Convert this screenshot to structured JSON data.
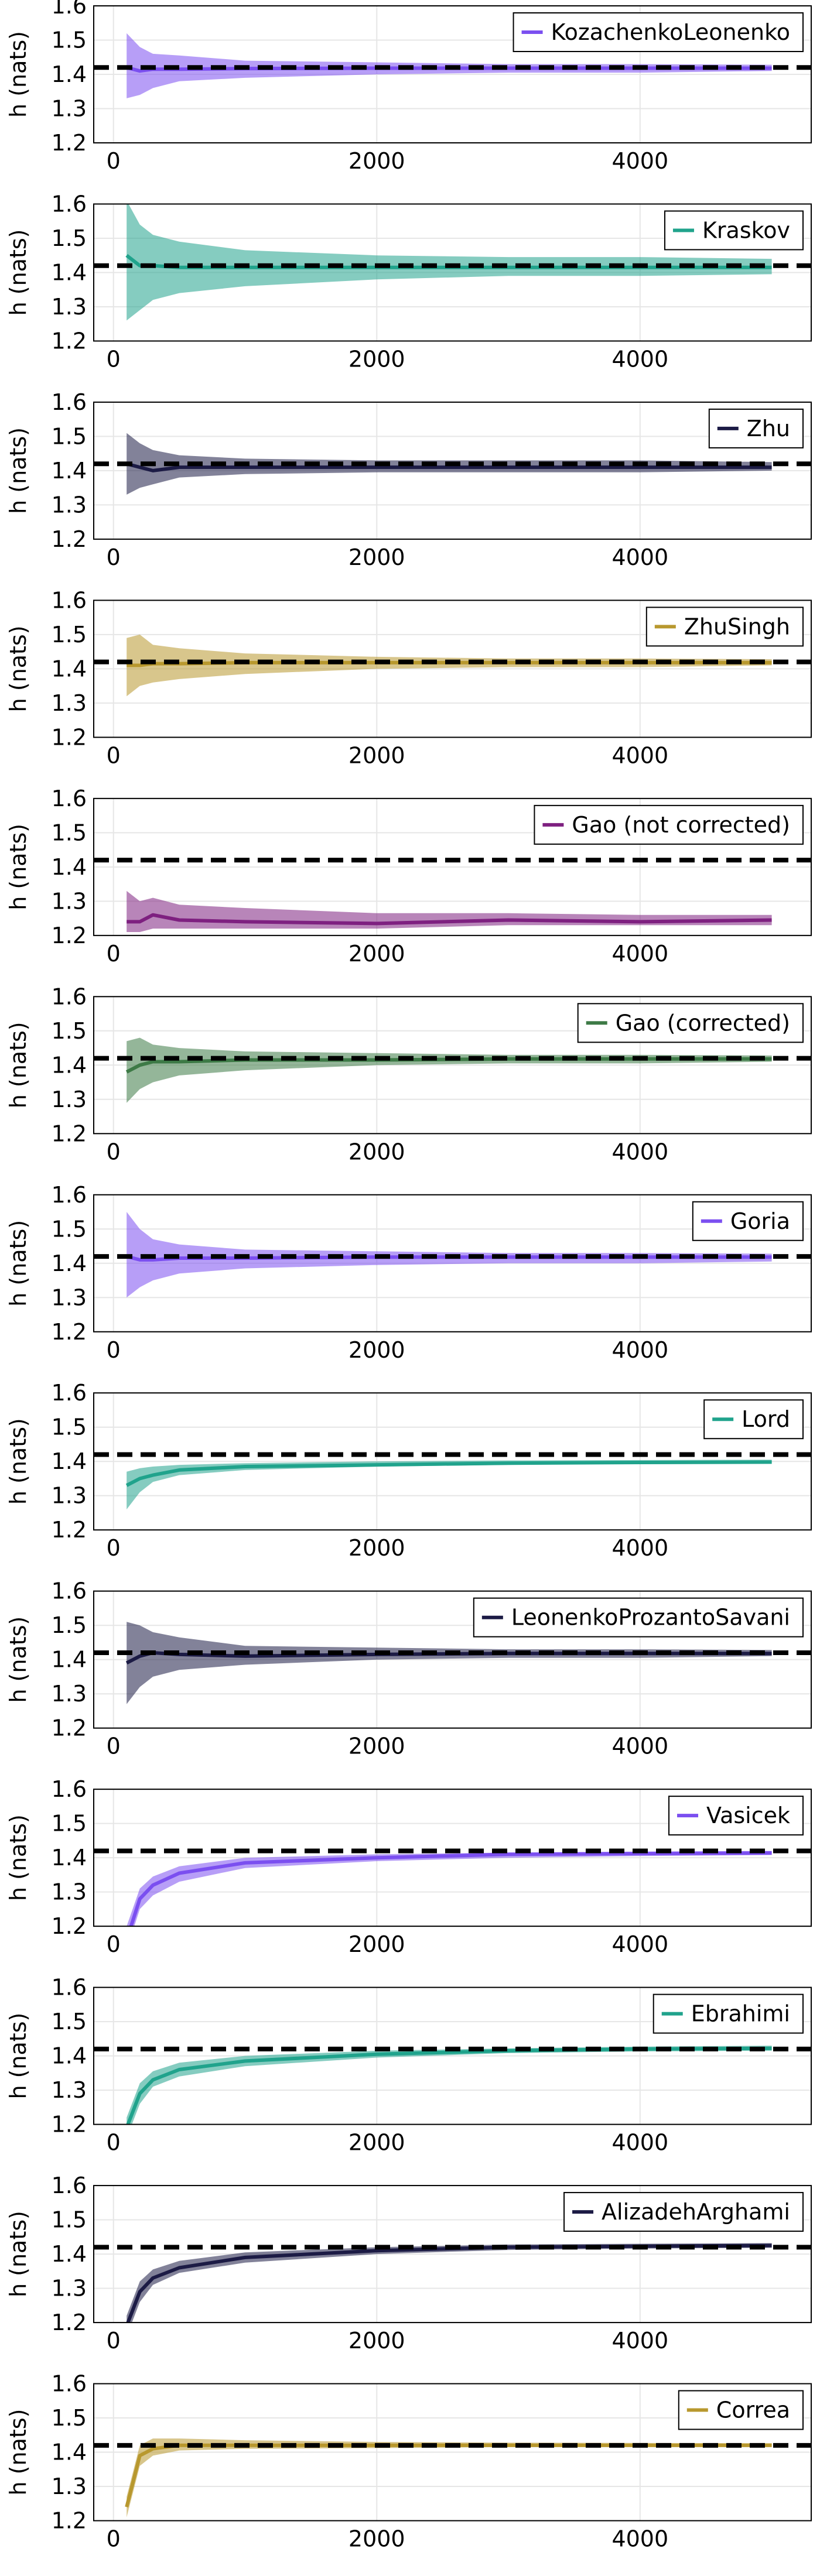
{
  "colors": {
    "KozachenkoLeonenko": "#7b4ff0",
    "Kraskov": "#20a38c",
    "Zhu": "#1c1b45",
    "ZhuSingh": "#b8982e",
    "Gao (not corrected)": "#7e2080",
    "Gao (corrected)": "#3d7a46",
    "Goria": "#7b4ff0",
    "Lord": "#20a38c",
    "LeonenkoProzantoSavani": "#1c1b45",
    "Vasicek": "#7b4ff0",
    "Ebrahimi": "#20a38c",
    "AlizadehArghami": "#1c1b45",
    "Correa": "#b8982e",
    "reference_line": "#000000",
    "grid": "#e6e6e6"
  },
  "chart_data": [
    {
      "type": "line",
      "legend": "KozachenkoLeonenko",
      "ylabel": "h (nats)",
      "xticks": [
        0,
        2000,
        4000
      ],
      "yticks": [
        1.2,
        1.3,
        1.4,
        1.5,
        1.6
      ],
      "xlim": [
        -150,
        5300
      ],
      "ylim": [
        1.2,
        1.6
      ],
      "reference": 1.42,
      "grid": true,
      "legend_position": "top-right",
      "series": [
        {
          "name": "KozachenkoLeonenko",
          "x": [
            100,
            200,
            300,
            500,
            1000,
            2000,
            3000,
            4000,
            5000
          ],
          "mean": [
            1.42,
            1.41,
            1.415,
            1.415,
            1.417,
            1.418,
            1.418,
            1.418,
            1.418
          ],
          "lower": [
            1.33,
            1.34,
            1.36,
            1.38,
            1.39,
            1.4,
            1.405,
            1.405,
            1.41
          ],
          "upper": [
            1.52,
            1.48,
            1.46,
            1.455,
            1.44,
            1.435,
            1.43,
            1.43,
            1.428
          ]
        }
      ]
    },
    {
      "type": "line",
      "legend": "Kraskov",
      "ylabel": "h (nats)",
      "xticks": [
        0,
        2000,
        4000
      ],
      "yticks": [
        1.2,
        1.3,
        1.4,
        1.5,
        1.6
      ],
      "xlim": [
        -150,
        5300
      ],
      "ylim": [
        1.2,
        1.6
      ],
      "reference": 1.42,
      "grid": true,
      "legend_position": "top-right",
      "series": [
        {
          "name": "Kraskov",
          "x": [
            100,
            200,
            300,
            500,
            1000,
            2000,
            3000,
            4000,
            5000
          ],
          "mean": [
            1.45,
            1.42,
            1.42,
            1.415,
            1.415,
            1.415,
            1.415,
            1.415,
            1.415
          ],
          "lower": [
            1.26,
            1.29,
            1.32,
            1.34,
            1.36,
            1.38,
            1.39,
            1.39,
            1.395
          ],
          "upper": [
            1.61,
            1.54,
            1.51,
            1.49,
            1.465,
            1.45,
            1.445,
            1.445,
            1.44
          ]
        }
      ]
    },
    {
      "type": "line",
      "legend": "Zhu",
      "ylabel": "h (nats)",
      "xticks": [
        0,
        2000,
        4000
      ],
      "yticks": [
        1.2,
        1.3,
        1.4,
        1.5,
        1.6
      ],
      "xlim": [
        -150,
        5300
      ],
      "ylim": [
        1.2,
        1.6
      ],
      "reference": 1.42,
      "grid": true,
      "legend_position": "top-right",
      "series": [
        {
          "name": "Zhu",
          "x": [
            100,
            200,
            300,
            500,
            1000,
            2000,
            3000,
            4000,
            5000
          ],
          "mean": [
            1.42,
            1.41,
            1.4,
            1.41,
            1.41,
            1.41,
            1.41,
            1.41,
            1.41
          ],
          "lower": [
            1.33,
            1.35,
            1.36,
            1.38,
            1.39,
            1.395,
            1.395,
            1.395,
            1.4
          ],
          "upper": [
            1.51,
            1.48,
            1.46,
            1.445,
            1.435,
            1.43,
            1.43,
            1.43,
            1.425
          ]
        }
      ]
    },
    {
      "type": "line",
      "legend": "ZhuSingh",
      "ylabel": "h (nats)",
      "xticks": [
        0,
        2000,
        4000
      ],
      "yticks": [
        1.2,
        1.3,
        1.4,
        1.5,
        1.6
      ],
      "xlim": [
        -150,
        5300
      ],
      "ylim": [
        1.2,
        1.6
      ],
      "reference": 1.42,
      "grid": true,
      "legend_position": "top-right",
      "series": [
        {
          "name": "ZhuSingh",
          "x": [
            100,
            200,
            300,
            500,
            1000,
            2000,
            3000,
            4000,
            5000
          ],
          "mean": [
            1.41,
            1.41,
            1.415,
            1.415,
            1.418,
            1.418,
            1.418,
            1.418,
            1.418
          ],
          "lower": [
            1.32,
            1.35,
            1.36,
            1.37,
            1.385,
            1.4,
            1.405,
            1.405,
            1.41
          ],
          "upper": [
            1.49,
            1.5,
            1.47,
            1.46,
            1.445,
            1.435,
            1.43,
            1.43,
            1.428
          ]
        }
      ]
    },
    {
      "type": "line",
      "legend": "Gao (not corrected)",
      "ylabel": "h (nats)",
      "xticks": [
        0,
        2000,
        4000
      ],
      "yticks": [
        1.2,
        1.3,
        1.4,
        1.5,
        1.6
      ],
      "xlim": [
        -150,
        5300
      ],
      "ylim": [
        1.2,
        1.6
      ],
      "reference": 1.42,
      "grid": true,
      "legend_position": "top-right",
      "series": [
        {
          "name": "Gao (not corrected)",
          "x": [
            100,
            200,
            300,
            500,
            1000,
            2000,
            3000,
            4000,
            5000
          ],
          "mean": [
            1.24,
            1.24,
            1.26,
            1.245,
            1.24,
            1.235,
            1.245,
            1.24,
            1.245
          ],
          "lower": [
            1.21,
            1.21,
            1.22,
            1.22,
            1.22,
            1.22,
            1.23,
            1.23,
            1.23
          ],
          "upper": [
            1.33,
            1.3,
            1.31,
            1.29,
            1.28,
            1.265,
            1.265,
            1.26,
            1.26
          ]
        }
      ]
    },
    {
      "type": "line",
      "legend": "Gao (corrected)",
      "ylabel": "h (nats)",
      "xticks": [
        0,
        2000,
        4000
      ],
      "yticks": [
        1.2,
        1.3,
        1.4,
        1.5,
        1.6
      ],
      "xlim": [
        -150,
        5300
      ],
      "ylim": [
        1.2,
        1.6
      ],
      "reference": 1.42,
      "grid": true,
      "legend_position": "top-right",
      "series": [
        {
          "name": "Gao (corrected)",
          "x": [
            100,
            200,
            300,
            500,
            1000,
            2000,
            3000,
            4000,
            5000
          ],
          "mean": [
            1.38,
            1.4,
            1.41,
            1.41,
            1.415,
            1.415,
            1.418,
            1.418,
            1.418
          ],
          "lower": [
            1.29,
            1.33,
            1.35,
            1.37,
            1.385,
            1.4,
            1.405,
            1.405,
            1.41
          ],
          "upper": [
            1.47,
            1.48,
            1.46,
            1.45,
            1.44,
            1.435,
            1.43,
            1.43,
            1.428
          ]
        }
      ]
    },
    {
      "type": "line",
      "legend": "Goria",
      "ylabel": "h (nats)",
      "xticks": [
        0,
        2000,
        4000
      ],
      "yticks": [
        1.2,
        1.3,
        1.4,
        1.5,
        1.6
      ],
      "xlim": [
        -150,
        5300
      ],
      "ylim": [
        1.2,
        1.6
      ],
      "reference": 1.42,
      "grid": true,
      "legend_position": "top-right",
      "series": [
        {
          "name": "Goria",
          "x": [
            100,
            200,
            300,
            500,
            1000,
            2000,
            3000,
            4000,
            5000
          ],
          "mean": [
            1.42,
            1.41,
            1.41,
            1.415,
            1.415,
            1.418,
            1.418,
            1.418,
            1.418
          ],
          "lower": [
            1.3,
            1.33,
            1.35,
            1.37,
            1.385,
            1.395,
            1.4,
            1.4,
            1.405
          ],
          "upper": [
            1.55,
            1.5,
            1.47,
            1.455,
            1.44,
            1.435,
            1.43,
            1.43,
            1.428
          ]
        }
      ]
    },
    {
      "type": "line",
      "legend": "Lord",
      "ylabel": "h (nats)",
      "xticks": [
        0,
        2000,
        4000
      ],
      "yticks": [
        1.2,
        1.3,
        1.4,
        1.5,
        1.6
      ],
      "xlim": [
        -150,
        5300
      ],
      "ylim": [
        1.2,
        1.6
      ],
      "reference": 1.42,
      "grid": true,
      "legend_position": "top-right",
      "series": [
        {
          "name": "Lord",
          "x": [
            100,
            200,
            300,
            500,
            1000,
            2000,
            3000,
            4000,
            5000
          ],
          "mean": [
            1.33,
            1.35,
            1.36,
            1.375,
            1.385,
            1.39,
            1.395,
            1.397,
            1.398
          ],
          "lower": [
            1.26,
            1.31,
            1.34,
            1.36,
            1.375,
            1.385,
            1.39,
            1.393,
            1.395
          ],
          "upper": [
            1.37,
            1.38,
            1.385,
            1.39,
            1.395,
            1.4,
            1.403,
            1.404,
            1.405
          ]
        }
      ]
    },
    {
      "type": "line",
      "legend": "LeonenkoProzantoSavani",
      "ylabel": "h (nats)",
      "xticks": [
        0,
        2000,
        4000
      ],
      "yticks": [
        1.2,
        1.3,
        1.4,
        1.5,
        1.6
      ],
      "xlim": [
        -150,
        5300
      ],
      "ylim": [
        1.2,
        1.6
      ],
      "reference": 1.42,
      "grid": true,
      "legend_position": "top-right",
      "series": [
        {
          "name": "LeonenkoProzantoSavani",
          "x": [
            100,
            200,
            300,
            500,
            1000,
            2000,
            3000,
            4000,
            5000
          ],
          "mean": [
            1.39,
            1.41,
            1.42,
            1.415,
            1.41,
            1.415,
            1.418,
            1.418,
            1.418
          ],
          "lower": [
            1.27,
            1.32,
            1.35,
            1.37,
            1.385,
            1.4,
            1.405,
            1.405,
            1.41
          ],
          "upper": [
            1.51,
            1.5,
            1.48,
            1.465,
            1.44,
            1.435,
            1.43,
            1.43,
            1.428
          ]
        }
      ]
    },
    {
      "type": "line",
      "legend": "Vasicek",
      "ylabel": "h (nats)",
      "xticks": [
        0,
        2000,
        4000
      ],
      "yticks": [
        1.2,
        1.3,
        1.4,
        1.5,
        1.6
      ],
      "xlim": [
        -150,
        5300
      ],
      "ylim": [
        1.2,
        1.6
      ],
      "reference": 1.42,
      "grid": true,
      "legend_position": "top-right",
      "series": [
        {
          "name": "Vasicek",
          "x": [
            100,
            200,
            300,
            500,
            1000,
            2000,
            3000,
            4000,
            5000
          ],
          "mean": [
            1.16,
            1.28,
            1.32,
            1.355,
            1.385,
            1.4,
            1.41,
            1.412,
            1.414
          ],
          "lower": [
            1.13,
            1.25,
            1.29,
            1.33,
            1.37,
            1.39,
            1.4,
            1.405,
            1.408
          ],
          "upper": [
            1.2,
            1.31,
            1.345,
            1.375,
            1.4,
            1.41,
            1.415,
            1.418,
            1.42
          ]
        }
      ]
    },
    {
      "type": "line",
      "legend": "Ebrahimi",
      "ylabel": "h (nats)",
      "xticks": [
        0,
        2000,
        4000
      ],
      "yticks": [
        1.2,
        1.3,
        1.4,
        1.5,
        1.6
      ],
      "xlim": [
        -150,
        5300
      ],
      "ylim": [
        1.2,
        1.6
      ],
      "reference": 1.42,
      "grid": true,
      "legend_position": "top-right",
      "series": [
        {
          "name": "Ebrahimi",
          "x": [
            100,
            200,
            300,
            500,
            1000,
            2000,
            3000,
            4000,
            5000
          ],
          "mean": [
            1.19,
            1.29,
            1.33,
            1.36,
            1.385,
            1.405,
            1.415,
            1.42,
            1.422
          ],
          "lower": [
            1.16,
            1.26,
            1.31,
            1.34,
            1.37,
            1.395,
            1.408,
            1.413,
            1.415
          ],
          "upper": [
            1.22,
            1.32,
            1.355,
            1.38,
            1.4,
            1.415,
            1.422,
            1.427,
            1.43
          ]
        }
      ]
    },
    {
      "type": "line",
      "legend": "AlizadehArghami",
      "ylabel": "h (nats)",
      "xticks": [
        0,
        2000,
        4000
      ],
      "yticks": [
        1.2,
        1.3,
        1.4,
        1.5,
        1.6
      ],
      "xlim": [
        -150,
        5300
      ],
      "ylim": [
        1.2,
        1.6
      ],
      "reference": 1.42,
      "grid": true,
      "legend_position": "top-right",
      "series": [
        {
          "name": "AlizadehArghami",
          "x": [
            100,
            200,
            300,
            500,
            1000,
            2000,
            3000,
            4000,
            5000
          ],
          "mean": [
            1.19,
            1.29,
            1.33,
            1.36,
            1.39,
            1.41,
            1.42,
            1.423,
            1.425
          ],
          "lower": [
            1.16,
            1.26,
            1.31,
            1.345,
            1.375,
            1.4,
            1.412,
            1.416,
            1.418
          ],
          "upper": [
            1.22,
            1.32,
            1.355,
            1.38,
            1.405,
            1.42,
            1.428,
            1.43,
            1.432
          ]
        }
      ]
    },
    {
      "type": "line",
      "legend": "Correa",
      "ylabel": "h (nats)",
      "xticks": [
        0,
        2000,
        4000
      ],
      "yticks": [
        1.2,
        1.3,
        1.4,
        1.5,
        1.6
      ],
      "xlim": [
        -150,
        5300
      ],
      "ylim": [
        1.2,
        1.6
      ],
      "reference": 1.42,
      "grid": true,
      "legend_position": "top-right",
      "series": [
        {
          "name": "Correa",
          "x": [
            100,
            200,
            300,
            500,
            1000,
            2000,
            3000,
            4000,
            5000
          ],
          "mean": [
            1.24,
            1.39,
            1.41,
            1.42,
            1.42,
            1.42,
            1.42,
            1.42,
            1.42
          ],
          "lower": [
            1.21,
            1.36,
            1.39,
            1.405,
            1.41,
            1.412,
            1.415,
            1.415,
            1.415
          ],
          "upper": [
            1.27,
            1.42,
            1.44,
            1.44,
            1.435,
            1.43,
            1.428,
            1.427,
            1.426
          ]
        }
      ]
    }
  ]
}
